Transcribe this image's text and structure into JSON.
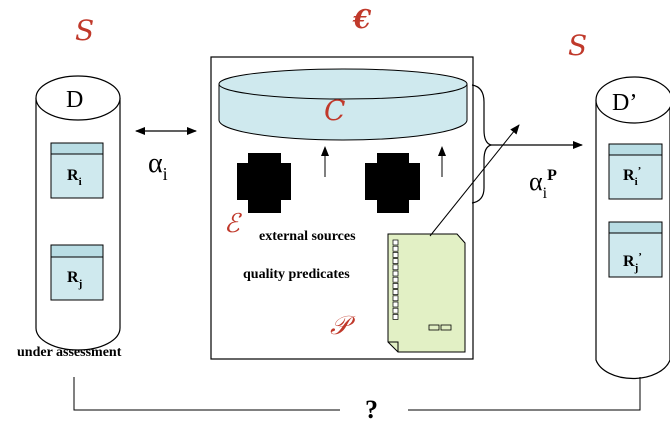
{
  "symbols": {
    "s_left": "S",
    "s_right": "S",
    "e_gothic": "€",
    "c_script": "C",
    "e_script": "ℰ",
    "p_script": "𝒫"
  },
  "left_db": {
    "title": "D",
    "rec1_main": "R",
    "rec1_sub": "i",
    "rec2_main": "R",
    "rec2_sub": "j",
    "caption": "under assessment"
  },
  "right_db": {
    "title": "D’",
    "rec1_main": "R",
    "rec1_sub": "i",
    "rec1_sup": "’",
    "rec2_main": "R",
    "rec2_sub": "j",
    "rec2_sup": "’"
  },
  "arrows": {
    "alpha_left_main": "α",
    "alpha_left_sub": "i",
    "alpha_right_main": "α",
    "alpha_right_sub": "i",
    "alpha_right_sup": "P"
  },
  "center": {
    "external_sources": "external sources",
    "quality_predicates": "quality predicates"
  },
  "bottom": {
    "question": "?"
  },
  "colors": {
    "accent_red": "#c0392b",
    "record_fill": "#cfe9ee",
    "record_header": "#b9dde4",
    "doc_fill": "#e2f0c5",
    "ink": "#000000"
  }
}
